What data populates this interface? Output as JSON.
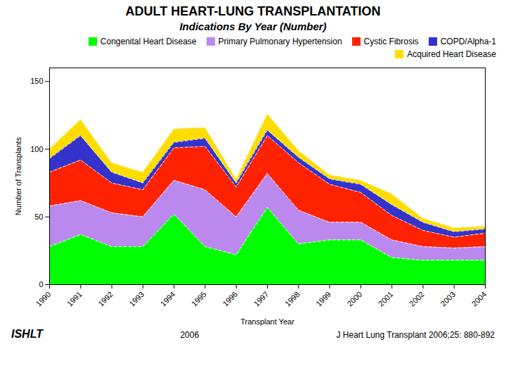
{
  "chart_data": {
    "type": "area",
    "stacked": true,
    "title": "ADULT HEART-LUNG TRANSPLANTATION",
    "subtitle": "Indications By Year (Number)",
    "xlabel": "Transplant Year",
    "ylabel": "Number of Transplants",
    "x": [
      1990,
      1991,
      1992,
      1993,
      1994,
      1995,
      1996,
      1997,
      1998,
      1999,
      2000,
      2001,
      2002,
      2003,
      2004
    ],
    "series": [
      {
        "name": "Congenital Heart Disease",
        "color": "#00FF00",
        "values": [
          28,
          37,
          28,
          28,
          52,
          28,
          22,
          57,
          30,
          33,
          33,
          20,
          18,
          18,
          18
        ]
      },
      {
        "name": "Primary Pulmonary Hypertension",
        "color": "#BB88EE",
        "values": [
          30,
          25,
          25,
          22,
          25,
          42,
          28,
          25,
          25,
          13,
          13,
          13,
          10,
          9,
          10
        ]
      },
      {
        "name": "Cystic Fibrosis",
        "color": "#FF2200",
        "values": [
          25,
          30,
          22,
          20,
          24,
          32,
          22,
          28,
          35,
          28,
          22,
          18,
          12,
          8,
          10
        ]
      },
      {
        "name": "COPD/Alpha-1",
        "color": "#3333CC",
        "values": [
          10,
          18,
          8,
          5,
          4,
          6,
          3,
          4,
          4,
          4,
          6,
          8,
          6,
          4,
          3
        ]
      },
      {
        "name": "Acquired Heart Disease",
        "color": "#FFDD00",
        "values": [
          7,
          12,
          7,
          8,
          10,
          8,
          3,
          12,
          5,
          3,
          3,
          8,
          3,
          3,
          2
        ]
      }
    ],
    "xlim": [
      1990,
      2004
    ],
    "xticks": [
      1990,
      1991,
      1992,
      1993,
      1994,
      1995,
      1996,
      1997,
      1998,
      1999,
      2000,
      2001,
      2002,
      2003,
      2004
    ],
    "ylim": [
      0,
      160
    ],
    "yticks": [
      0,
      50,
      100,
      150
    ],
    "legend": "upper right",
    "annotations": [
      "ISHLT",
      "2006",
      "J Heart Lung Transplant 2006;25: 880-892"
    ]
  }
}
